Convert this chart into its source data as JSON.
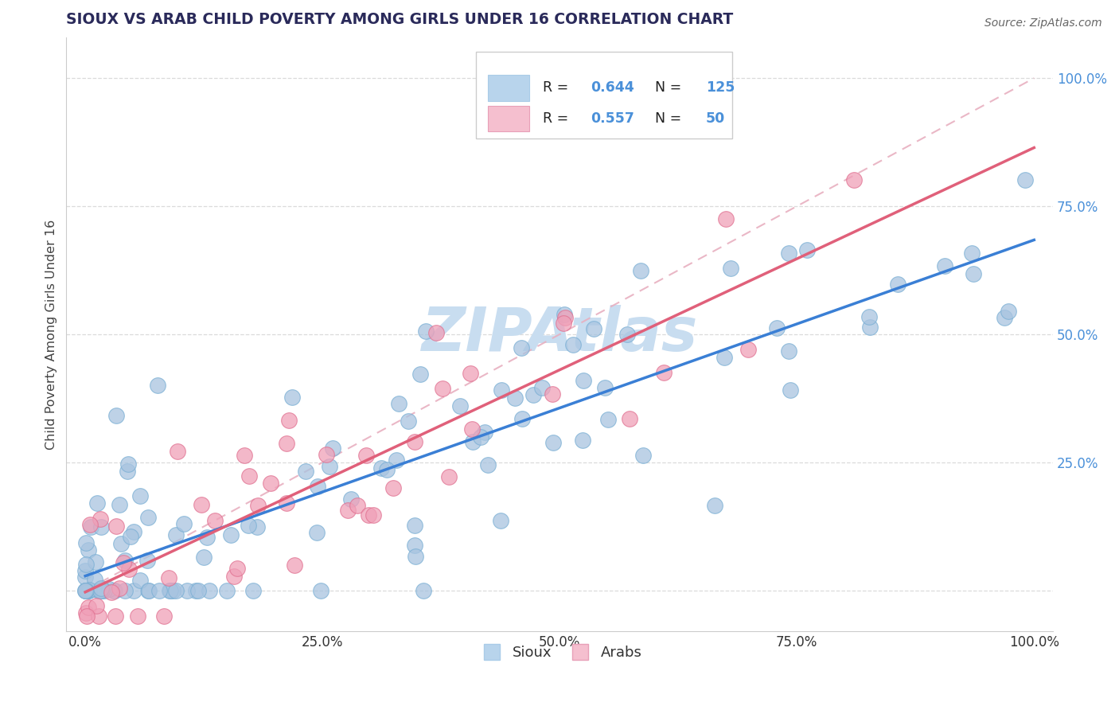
{
  "title": "SIOUX VS ARAB CHILD POVERTY AMONG GIRLS UNDER 16 CORRELATION CHART",
  "source": "Source: ZipAtlas.com",
  "ylabel": "Child Poverty Among Girls Under 16",
  "sioux_R": 0.644,
  "sioux_N": 125,
  "arab_R": 0.557,
  "arab_N": 50,
  "sioux_color": "#a8c4e0",
  "sioux_edge_color": "#7aafd4",
  "arab_color": "#f0a0b8",
  "arab_edge_color": "#e07090",
  "sioux_line_color": "#3a7fd5",
  "arab_line_color": "#e0607a",
  "dash_line_color": "#e0b0c0",
  "watermark_color": "#c8ddf0",
  "legend_sioux_color": "#b8d4ec",
  "legend_arab_color": "#f5bfcf",
  "ytick_color": "#4a90d9",
  "title_color": "#2a2a5a",
  "source_color": "#666666",
  "grid_color": "#d8d8d8"
}
